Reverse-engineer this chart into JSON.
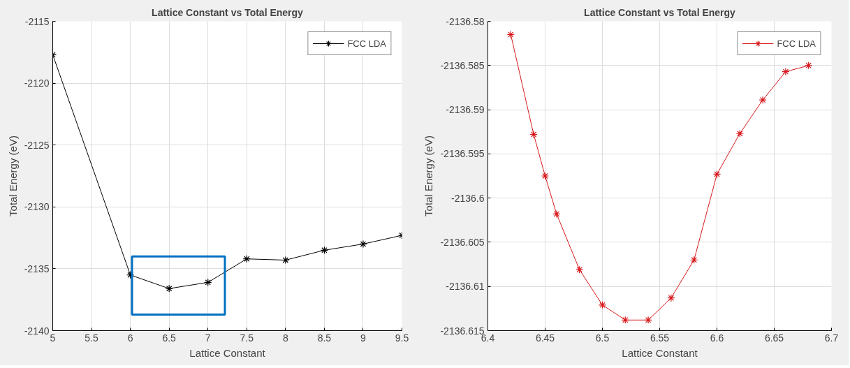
{
  "chart_data": [
    {
      "type": "line",
      "title": "Lattice Constant vs Total Energy",
      "xlabel": "Lattice Constant",
      "ylabel": "Total Energy (eV)",
      "x": [
        5,
        6,
        6.5,
        7,
        7.5,
        8,
        8.5,
        9,
        9.5
      ],
      "series": [
        {
          "name": "FCC LDA",
          "color": "#000000",
          "values": [
            -2117.7,
            -2135.5,
            -2136.6,
            -2136.1,
            -2134.2,
            -2134.3,
            -2133.5,
            -2133.0,
            -2132.3
          ]
        }
      ],
      "xlim": [
        5,
        9.5
      ],
      "ylim": [
        -2140,
        -2115
      ],
      "xticks": [
        5,
        5.5,
        6,
        6.5,
        7,
        7.5,
        8,
        8.5,
        9,
        9.5
      ],
      "yticks": [
        -2140,
        -2135,
        -2130,
        -2125,
        -2120,
        -2115
      ],
      "grid": true,
      "legend": "top right",
      "marker": "cross",
      "line_style": "solid"
    },
    {
      "type": "line",
      "title": "Lattice Constant vs Total Energy",
      "xlabel": "Lattice Constant",
      "ylabel": "Total Energy (eV)",
      "x": [
        6.42,
        6.44,
        6.45,
        6.46,
        6.48,
        6.5,
        6.52,
        6.54,
        6.56,
        6.58,
        6.6,
        6.62,
        6.64,
        6.66,
        6.68
      ],
      "series": [
        {
          "name": "FCC LDA",
          "color": "#d7191c",
          "values": [
            -2136.5815,
            -2136.5928,
            -2136.5975,
            -2136.6018,
            -2136.6081,
            -2136.6121,
            -2136.6138,
            -2136.6138,
            -2136.6113,
            -2136.607,
            -2136.5973,
            -2136.5927,
            -2136.5889,
            -2136.5857,
            -2136.585
          ]
        }
      ],
      "xlim": [
        6.4,
        6.7
      ],
      "ylim": [
        -2136.615,
        -2136.58
      ],
      "xticks": [
        6.4,
        6.45,
        6.5,
        6.55,
        6.6,
        6.65,
        6.7
      ],
      "yticks": [
        -2136.615,
        -2136.61,
        -2136.605,
        -2136.6,
        -2136.595,
        -2136.59,
        -2136.585,
        -2136.58
      ],
      "grid": true,
      "legend": "top right",
      "marker": "cross",
      "line_style": "solid"
    }
  ]
}
